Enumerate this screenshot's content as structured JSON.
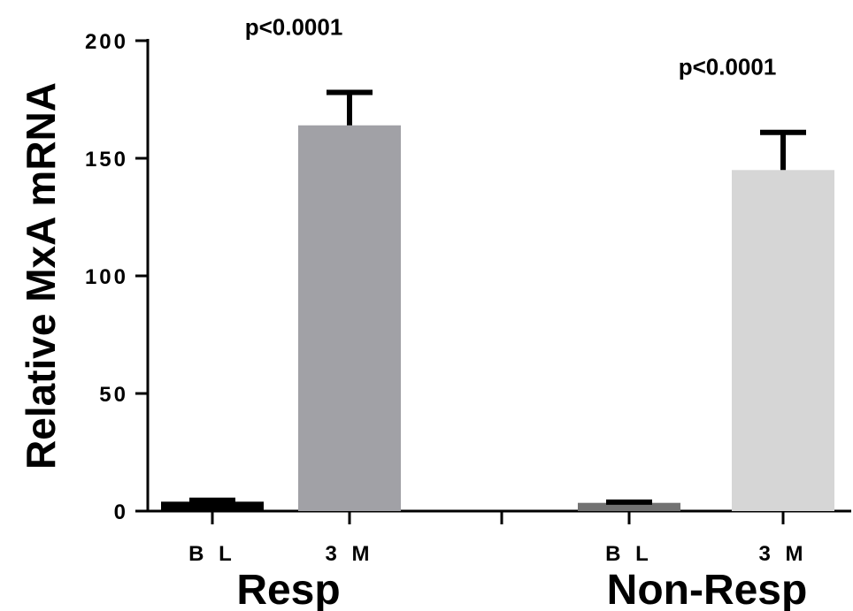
{
  "chart_data": {
    "type": "bar",
    "ylabel": "Relative MxA mRNA",
    "ylim": [
      0,
      200
    ],
    "yticks": [
      "0",
      "50",
      "100",
      "150",
      "200"
    ],
    "groups": [
      {
        "label": "Resp",
        "p_value": "p<0.0001",
        "bars": [
          {
            "category": "B L",
            "value": 4,
            "error": 0.6,
            "color": "#000000"
          },
          {
            "category": "3 M",
            "value": 164,
            "error": 14,
            "color": "#a1a1a6"
          }
        ]
      },
      {
        "label": "Non-Resp",
        "p_value": "p<0.0001",
        "bars": [
          {
            "category": "B L",
            "value": 3.5,
            "error": 0.3,
            "color": "#727272"
          },
          {
            "category": "3 M",
            "value": 145,
            "error": 16,
            "color": "#d6d6d6"
          }
        ]
      }
    ],
    "grid": false,
    "legend": "none"
  }
}
